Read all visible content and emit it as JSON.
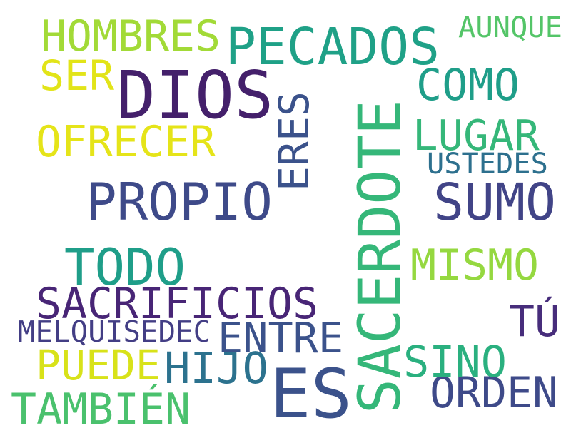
{
  "words": [
    {
      "text": "DIOS",
      "color": "#44206b",
      "rotation": 0
    },
    {
      "text": "SACERDOTE",
      "color": "#35b779",
      "rotation": -90
    },
    {
      "text": "ES",
      "color": "#3b528b",
      "rotation": 0
    },
    {
      "text": "PECADOS",
      "color": "#1fa187",
      "rotation": 0
    },
    {
      "text": "PROPIO",
      "color": "#3e4a89",
      "rotation": 0
    },
    {
      "text": "SUMO",
      "color": "#414487",
      "rotation": 0
    },
    {
      "text": "SACRIFICIOS",
      "color": "#482576",
      "rotation": 0
    },
    {
      "text": "TODO",
      "color": "#1f9e89",
      "rotation": 0
    },
    {
      "text": "HOMBRES",
      "color": "#a2da37",
      "rotation": 0
    },
    {
      "text": "ERES",
      "color": "#3b528b",
      "rotation": -90
    },
    {
      "text": "OFRECER",
      "color": "#e5e419",
      "rotation": 0
    },
    {
      "text": "LUGAR",
      "color": "#35b779",
      "rotation": 0
    },
    {
      "text": "COMO",
      "color": "#1f9e89",
      "rotation": 0
    },
    {
      "text": "MISMO",
      "color": "#95d840",
      "rotation": 0
    },
    {
      "text": "ENTRE",
      "color": "#3b528b",
      "rotation": 0
    },
    {
      "text": "ORDEN",
      "color": "#3e4a89",
      "rotation": 0
    },
    {
      "text": "TAMBIÉN",
      "color": "#4ac16d",
      "rotation": 0
    },
    {
      "text": "HIJO",
      "color": "#2c728e",
      "rotation": 0
    },
    {
      "text": "SINO",
      "color": "#2ab07f",
      "rotation": 0
    },
    {
      "text": "PUEDE",
      "color": "#d8e219",
      "rotation": 0
    },
    {
      "text": "TÚ",
      "color": "#472d7b",
      "rotation": 0
    },
    {
      "text": "SER",
      "color": "#e2e418",
      "rotation": 0
    },
    {
      "text": "MELQUISEDEC",
      "color": "#433e85",
      "rotation": 0
    },
    {
      "text": "USTEDES",
      "color": "#2d708e",
      "rotation": 0
    },
    {
      "text": "AUNQUE",
      "color": "#54c568",
      "rotation": 0
    }
  ]
}
